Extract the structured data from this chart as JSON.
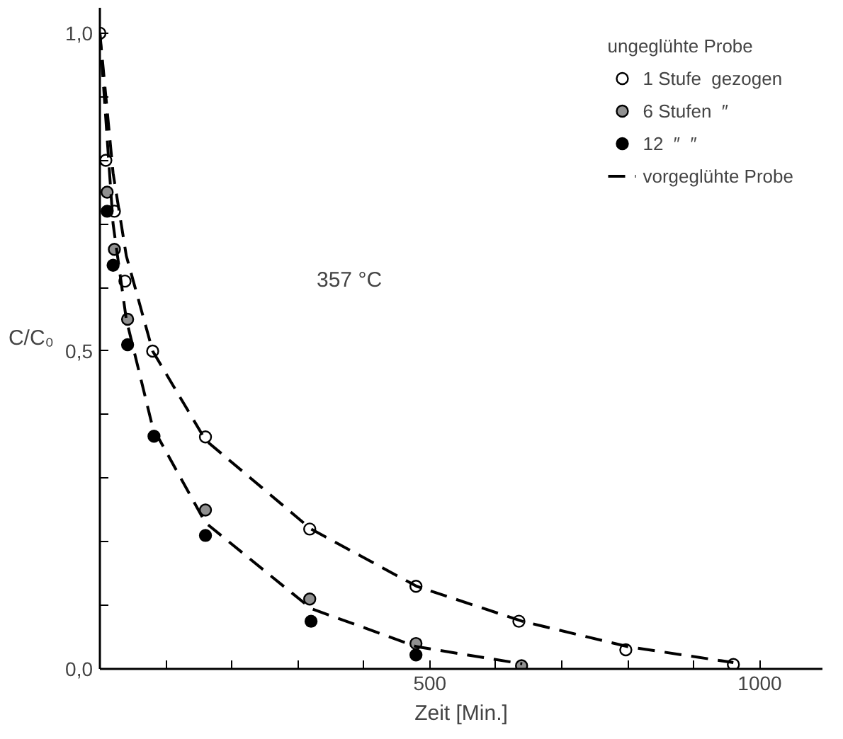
{
  "chart_data": {
    "type": "scatter",
    "xlabel": "Zeit [Min.]",
    "ylabel": "C/C₀",
    "legend_title": "ungeglühte Probe",
    "annotations": [
      "357 °C"
    ],
    "xlim": [
      0,
      1095
    ],
    "ylim": [
      0,
      1.04
    ],
    "xticks": [
      {
        "value": 0,
        "label": null
      },
      {
        "value": 100,
        "label": null
      },
      {
        "value": 200,
        "label": null
      },
      {
        "value": 300,
        "label": null
      },
      {
        "value": 400,
        "label": null
      },
      500,
      {
        "value": 600,
        "label": null
      },
      {
        "value": 700,
        "label": null
      },
      {
        "value": 800,
        "label": null
      },
      {
        "value": 900,
        "label": null
      },
      1000
    ],
    "yticks": [
      {
        "value": 0,
        "label": "0,0"
      },
      {
        "value": 0.1,
        "label": null
      },
      {
        "value": 0.2,
        "label": null
      },
      {
        "value": 0.3,
        "label": null
      },
      {
        "value": 0.4,
        "label": null
      },
      {
        "value": 0.5,
        "label": "0,5"
      },
      {
        "value": 0.6,
        "label": null
      },
      {
        "value": 0.7,
        "label": null
      },
      {
        "value": 0.8,
        "label": null
      },
      {
        "value": 0.9,
        "label": null
      },
      {
        "value": 1.0,
        "label": "1,0"
      }
    ],
    "grid": false,
    "legend": "top right",
    "series": [
      {
        "name": "1 Stufe  gezogen",
        "marker": "circle",
        "color": "#ffffff",
        "x": [
          0,
          9,
          22,
          38,
          80,
          160,
          318,
          479,
          635,
          797,
          960
        ],
        "values": [
          1.0,
          0.8,
          0.72,
          0.61,
          0.5,
          0.365,
          0.22,
          0.13,
          0.075,
          0.03,
          0.007
        ]
      },
      {
        "name": "6 Stufen  ″",
        "marker": "circle",
        "color": "#909090",
        "x": [
          11,
          22,
          42,
          160,
          318,
          479,
          639
        ],
        "values": [
          0.75,
          0.66,
          0.55,
          0.25,
          0.11,
          0.04,
          0.005
        ]
      },
      {
        "name": "12  ″  ″",
        "marker": "circle",
        "color": "#000000",
        "x": [
          11,
          20,
          42,
          82,
          160,
          320,
          479
        ],
        "values": [
          0.72,
          0.635,
          0.51,
          0.366,
          0.21,
          0.075,
          0.022
        ]
      },
      {
        "name": "vorgeglühte Probe",
        "type": "line",
        "line_style": "dashed",
        "color": "#000000",
        "x": [
          0,
          20,
          40,
          80,
          160,
          320,
          480,
          640,
          800,
          960
        ],
        "values": [
          1.0,
          0.78,
          0.65,
          0.5,
          0.36,
          0.22,
          0.13,
          0.075,
          0.035,
          0.01
        ]
      },
      {
        "type": "line",
        "line_style": "dashed",
        "color": "#000000",
        "x": [
          0,
          20,
          40,
          80,
          160,
          320,
          480,
          640
        ],
        "values": [
          1.0,
          0.7,
          0.55,
          0.38,
          0.23,
          0.095,
          0.035,
          0.008
        ]
      }
    ]
  }
}
